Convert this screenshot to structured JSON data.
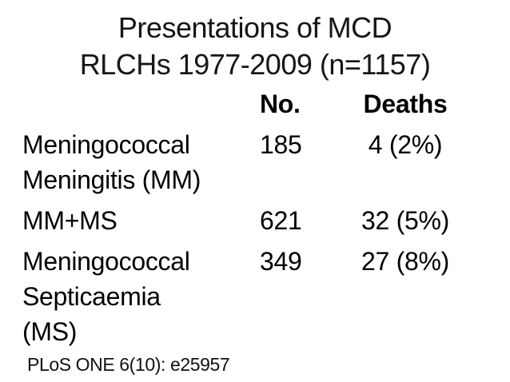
{
  "slide": {
    "title": {
      "line1": "Presentations of MCD",
      "line2": "RLCHs 1977-2009 (n=1157)"
    },
    "table": {
      "header": {
        "no": "No.",
        "deaths": "Deaths"
      },
      "rows": [
        {
          "label_lines": [
            "Meningococcal",
            "Meningitis (MM)"
          ],
          "no": "185",
          "deaths": "4 (2%)"
        },
        {
          "label_lines": [
            "MM+MS"
          ],
          "no": "621",
          "deaths": "32 (5%)"
        },
        {
          "label_lines": [
            "Meningococcal",
            "Septicaemia",
            "(MS)"
          ],
          "no": "349",
          "deaths": "27 (8%)"
        }
      ]
    },
    "citation": "PLoS ONE 6(10): e25957",
    "colors": {
      "background": "#ffffff",
      "text": "#000000"
    }
  }
}
